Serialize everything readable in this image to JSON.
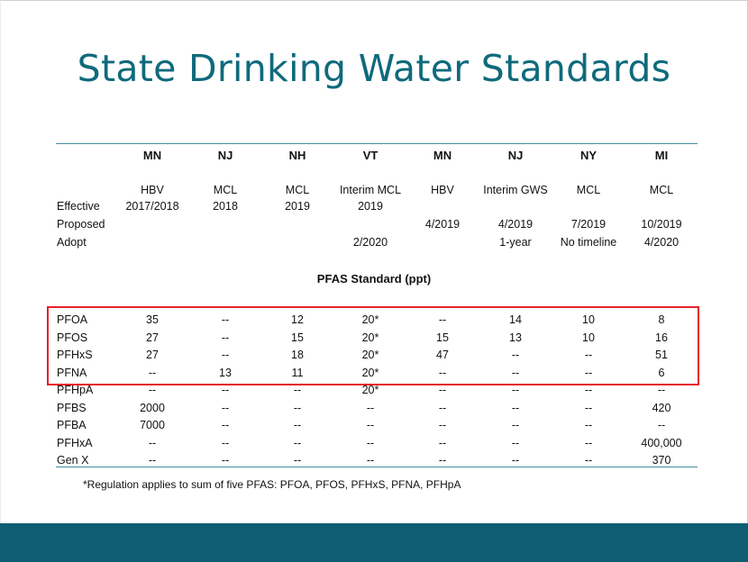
{
  "title": "State Drinking Water Standards",
  "states": [
    "MN",
    "NJ",
    "NH",
    "VT",
    "MN",
    "NJ",
    "NY",
    "MI"
  ],
  "types": [
    [
      "HBV",
      "2017/2018"
    ],
    [
      "MCL",
      "2018"
    ],
    [
      "MCL",
      "2019"
    ],
    [
      "Interim MCL",
      "2019"
    ],
    [
      "HBV",
      ""
    ],
    [
      "Interim GWS",
      ""
    ],
    [
      "MCL",
      ""
    ],
    [
      "MCL",
      ""
    ]
  ],
  "row_labels": {
    "effective": "Effective",
    "proposed": "Proposed",
    "adopt": "Adopt"
  },
  "proposed": [
    "",
    "",
    "",
    "",
    "4/2019",
    "4/2019",
    "7/2019",
    "10/2019"
  ],
  "adopt": [
    "",
    "",
    "",
    "2/2020",
    "",
    "1-year",
    "No timeline",
    "4/2020"
  ],
  "subheader": "PFAS Standard (ppt)",
  "chemicals": [
    {
      "name": "PFOA",
      "values": [
        "35",
        "--",
        "12",
        "20*",
        "--",
        "14",
        "10",
        "8"
      ]
    },
    {
      "name": "PFOS",
      "values": [
        "27",
        "--",
        "15",
        "20*",
        "15",
        "13",
        "10",
        "16"
      ]
    },
    {
      "name": "PFHxS",
      "values": [
        "27",
        "--",
        "18",
        "20*",
        "47",
        "--",
        "--",
        "51"
      ]
    },
    {
      "name": "PFNA",
      "values": [
        "--",
        "13",
        "11",
        "20*",
        "--",
        "--",
        "--",
        "6"
      ]
    },
    {
      "name": "PFHpA",
      "values": [
        "--",
        "--",
        "--",
        "20*",
        "--",
        "--",
        "--",
        "--"
      ]
    },
    {
      "name": "PFBS",
      "values": [
        "2000",
        "--",
        "--",
        "--",
        "--",
        "--",
        "--",
        "420"
      ]
    },
    {
      "name": "PFBA",
      "values": [
        "7000",
        "--",
        "--",
        "--",
        "--",
        "--",
        "--",
        "--"
      ]
    },
    {
      "name": "PFHxA",
      "values": [
        "--",
        "--",
        "--",
        "--",
        "--",
        "--",
        "--",
        "400,000"
      ]
    },
    {
      "name": "Gen X",
      "values": [
        "--",
        "--",
        "--",
        "--",
        "--",
        "--",
        "--",
        "370"
      ]
    }
  ],
  "footnote": "*Regulation applies to sum of five PFAS:  PFOA, PFOS, PFHxS, PFNA, PFHpA",
  "colors": {
    "title": "#0f6a7c",
    "footer": "#0f5e74",
    "highlight": "#e52129",
    "rule": "#3f8fa0"
  }
}
